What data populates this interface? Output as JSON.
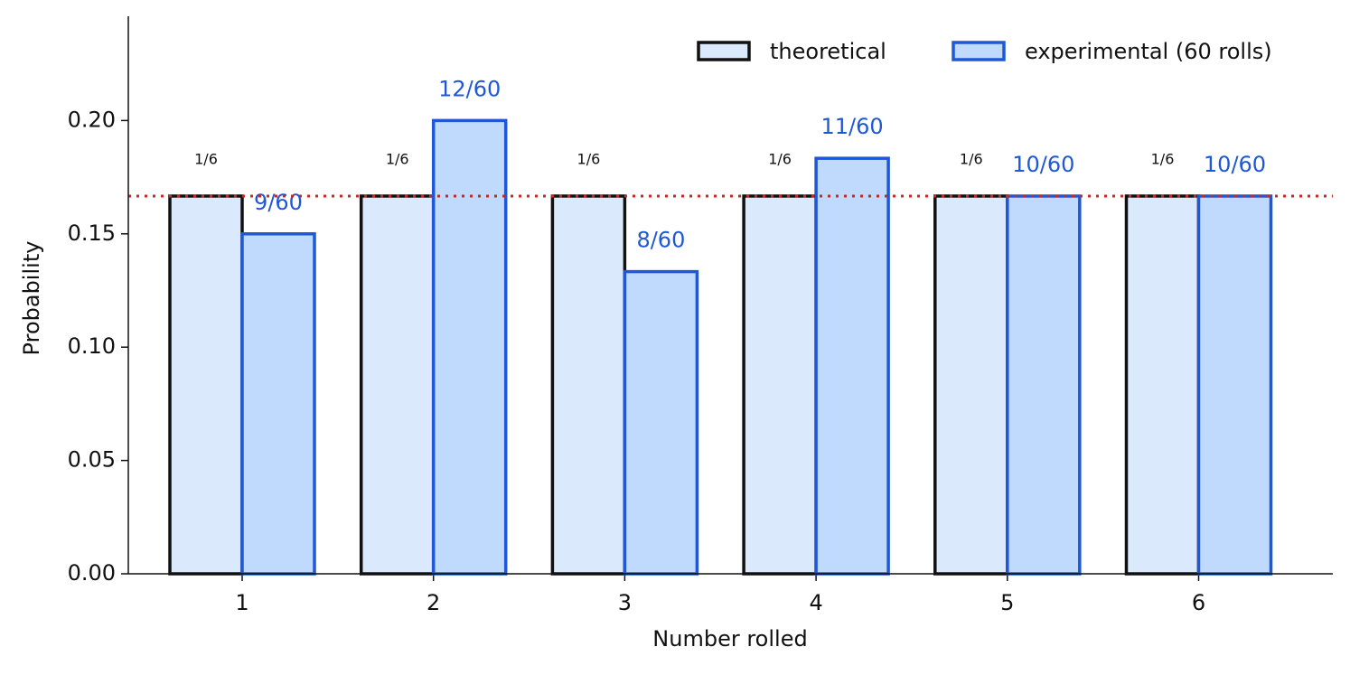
{
  "chart_data": {
    "type": "bar",
    "x_label": "Number rolled",
    "y_label": "Probability",
    "categories": [
      1,
      2,
      3,
      4,
      5,
      6
    ],
    "series": [
      {
        "name": "theoretical",
        "color": "#dbe9fd",
        "edgecolor": "#111111",
        "label_color": "#111111",
        "values": [
          0.16667,
          0.16667,
          0.16667,
          0.16667,
          0.16667,
          0.16667
        ],
        "value_labels": [
          "1/6",
          "1/6",
          "1/6",
          "1/6",
          "1/6",
          "1/6"
        ]
      },
      {
        "name": "experimental (60 rolls)",
        "color": "#bfdafd",
        "edgecolor": "#1f57d6",
        "label_color": "#1f57d6",
        "values": [
          0.15,
          0.2,
          0.13333,
          0.18333,
          0.16667,
          0.16667
        ],
        "value_labels": [
          "9/60",
          "12/60",
          "8/60",
          "11/60",
          "10/60",
          "10/60"
        ]
      }
    ],
    "reference_line": {
      "value": 0.16667,
      "color": "#c62828"
    },
    "ylim": [
      0,
      0.246
    ],
    "yticks": [
      {
        "value": 0,
        "label": "0.00"
      },
      0.05,
      {
        "value": 0.1,
        "label": "0.10"
      },
      0.15,
      {
        "value": 0.2,
        "label": "0.20"
      }
    ],
    "legend": "upper right",
    "grid": false
  }
}
